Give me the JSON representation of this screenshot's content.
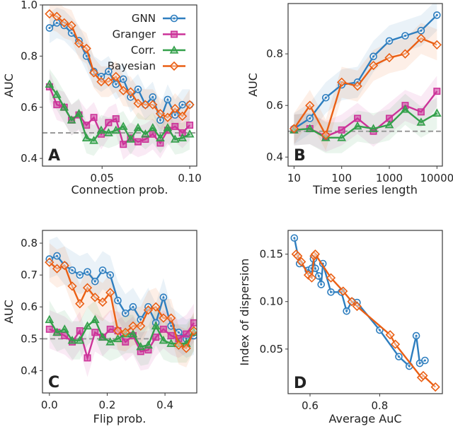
{
  "colors": {
    "GNN": "#2e7ebf",
    "Granger": "#cc3399",
    "Corr.": "#33a04a",
    "Bayesian": "#ea5f14",
    "baseline": "#999999"
  },
  "chart_data": [
    {
      "type": "line",
      "panel_label": "A",
      "xlabel": "Connection prob.",
      "ylabel": "AUC",
      "xlim": [
        0.016,
        0.104
      ],
      "ylim": [
        0.37,
        1.0
      ],
      "xticks": [
        0.05,
        0.1
      ],
      "xtick_labels": [
        "0.05",
        "0.10"
      ],
      "yticks": [
        0.4,
        0.6,
        0.8,
        1.0
      ],
      "ytick_labels": [
        "0.4",
        "0.6",
        "0.8",
        "1.0"
      ],
      "baseline": 0.5,
      "band_halfwidth": 0.06,
      "legend": "top-right",
      "x": [
        0.02,
        0.0242,
        0.0284,
        0.0326,
        0.0368,
        0.0411,
        0.0453,
        0.0495,
        0.0537,
        0.0579,
        0.0621,
        0.0663,
        0.0705,
        0.0747,
        0.0789,
        0.0832,
        0.0874,
        0.0916,
        0.0958,
        0.1
      ],
      "series": [
        {
          "name": "GNN",
          "marker": "circle",
          "values": [
            0.91,
            0.93,
            0.92,
            0.89,
            0.86,
            0.8,
            0.74,
            0.72,
            0.74,
            0.69,
            0.71,
            0.64,
            0.67,
            0.61,
            0.64,
            0.55,
            0.63,
            0.57,
            0.61,
            0.61
          ]
        },
        {
          "name": "Granger",
          "marker": "square",
          "values": [
            0.68,
            0.61,
            0.6,
            0.55,
            0.57,
            0.53,
            0.56,
            0.495,
            0.54,
            0.555,
            0.455,
            0.48,
            0.465,
            0.475,
            0.495,
            0.46,
            0.51,
            0.525,
            0.5,
            0.53
          ]
        },
        {
          "name": "Corr.",
          "marker": "triangle",
          "values": [
            0.69,
            0.65,
            0.6,
            0.55,
            0.575,
            0.48,
            0.47,
            0.51,
            0.5,
            0.51,
            0.525,
            0.475,
            0.52,
            0.495,
            0.52,
            0.48,
            0.52,
            0.475,
            0.48,
            0.495
          ]
        },
        {
          "name": "Bayesian",
          "marker": "diamond",
          "values": [
            0.965,
            0.955,
            0.93,
            0.92,
            0.85,
            0.83,
            0.735,
            0.7,
            0.7,
            0.72,
            0.665,
            0.66,
            0.615,
            0.61,
            0.61,
            0.575,
            0.56,
            0.595,
            0.565,
            0.61
          ]
        }
      ]
    },
    {
      "type": "line",
      "panel_label": "B",
      "xscale": "log",
      "xlabel": "Time series length",
      "ylabel": "AUC",
      "xlim": [
        7.5,
        13000
      ],
      "ylim": [
        0.365,
        0.995
      ],
      "xticks": [
        10,
        100,
        1000,
        10000
      ],
      "xtick_labels": [
        "10",
        "100",
        "1000",
        "10000"
      ],
      "yticks": [
        0.4,
        0.6,
        0.8
      ],
      "ytick_labels": [
        "0.4",
        "0.6",
        "0.8"
      ],
      "baseline": 0.5,
      "band_halfwidth": 0.06,
      "x": [
        10,
        21.5,
        46.4,
        100,
        215,
        464,
        1000,
        2154,
        4642,
        10000
      ],
      "series": [
        {
          "name": "GNN",
          "marker": "circle",
          "values": [
            0.51,
            0.55,
            0.63,
            0.68,
            0.69,
            0.79,
            0.85,
            0.87,
            0.89,
            0.95
          ]
        },
        {
          "name": "Granger",
          "marker": "square",
          "values": [
            0.505,
            0.51,
            0.48,
            0.505,
            0.55,
            0.5,
            0.55,
            0.6,
            0.575,
            0.655
          ]
        },
        {
          "name": "Corr.",
          "marker": "triangle",
          "values": [
            0.505,
            0.51,
            0.475,
            0.475,
            0.52,
            0.51,
            0.525,
            0.585,
            0.535,
            0.57
          ]
        },
        {
          "name": "Bayesian",
          "marker": "diamond",
          "values": [
            0.51,
            0.6,
            0.485,
            0.69,
            0.675,
            0.755,
            0.785,
            0.8,
            0.86,
            0.835
          ]
        }
      ]
    },
    {
      "type": "line",
      "panel_label": "C",
      "xlabel": "Flip prob.",
      "ylabel": "AUC",
      "xlim": [
        -0.024,
        0.51
      ],
      "ylim": [
        0.33,
        0.84
      ],
      "xticks": [
        0.0,
        0.2,
        0.4
      ],
      "xtick_labels": [
        "0.0",
        "0.2",
        "0.4"
      ],
      "yticks": [
        0.4,
        0.5,
        0.6,
        0.7,
        0.8
      ],
      "ytick_labels": [
        "0.4",
        "0.5",
        "0.6",
        "0.7",
        "0.8"
      ],
      "baseline": 0.5,
      "band_halfwidth": 0.06,
      "x": [
        0,
        0.0263,
        0.0526,
        0.0789,
        0.1053,
        0.1316,
        0.1579,
        0.1842,
        0.2105,
        0.2368,
        0.2632,
        0.2895,
        0.3158,
        0.3421,
        0.3684,
        0.3947,
        0.4211,
        0.4474,
        0.4737,
        0.5
      ],
      "series": [
        {
          "name": "GNN",
          "marker": "circle",
          "values": [
            0.75,
            0.76,
            0.73,
            0.715,
            0.7,
            0.71,
            0.68,
            0.715,
            0.7,
            0.62,
            0.58,
            0.6,
            0.56,
            0.6,
            0.55,
            0.63,
            0.54,
            0.52,
            0.5,
            0.51
          ]
        },
        {
          "name": "Granger",
          "marker": "square",
          "values": [
            0.53,
            0.52,
            0.51,
            0.49,
            0.525,
            0.44,
            0.52,
            0.505,
            0.53,
            0.525,
            0.49,
            0.51,
            0.46,
            0.465,
            0.505,
            0.53,
            0.51,
            0.5,
            0.515,
            0.55
          ]
        },
        {
          "name": "Corr.",
          "marker": "triangle",
          "values": [
            0.56,
            0.52,
            0.53,
            0.495,
            0.495,
            0.54,
            0.56,
            0.505,
            0.49,
            0.5,
            0.515,
            0.515,
            0.475,
            0.48,
            0.54,
            0.495,
            0.485,
            0.485,
            0.485,
            0.52
          ]
        },
        {
          "name": "Bayesian",
          "marker": "diamond",
          "values": [
            0.74,
            0.72,
            0.73,
            0.665,
            0.61,
            0.66,
            0.63,
            0.615,
            0.645,
            0.525,
            0.52,
            0.54,
            0.54,
            0.59,
            0.6,
            0.565,
            0.565,
            0.48,
            0.47,
            0.525
          ]
        }
      ]
    },
    {
      "type": "line",
      "panel_label": "D",
      "xlabel": "Average AuC",
      "ylabel": "Index of dispersion",
      "xlim": [
        0.537,
        0.98
      ],
      "ylim": [
        0.003,
        0.175
      ],
      "xticks": [
        0.6,
        0.8
      ],
      "xtick_labels": [
        "0.6",
        "0.8"
      ],
      "yticks": [
        0.05,
        0.1,
        0.15
      ],
      "ytick_labels": [
        "0.05",
        "0.10",
        "0.15"
      ],
      "series": [
        {
          "name": "GNN",
          "marker": "circle",
          "x": [
            0.555,
            0.57,
            0.595,
            0.605,
            0.61,
            0.615,
            0.625,
            0.632,
            0.637,
            0.66,
            0.69,
            0.705,
            0.72,
            0.735,
            0.8,
            0.855,
            0.885,
            0.905,
            0.915,
            0.93
          ],
          "values": [
            0.167,
            0.14,
            0.133,
            0.135,
            0.145,
            0.135,
            0.127,
            0.118,
            0.14,
            0.11,
            0.11,
            0.09,
            0.1,
            0.099,
            0.07,
            0.042,
            0.032,
            0.064,
            0.035,
            0.038
          ]
        },
        {
          "name": "Bayesian",
          "marker": "diamond",
          "x": [
            0.56,
            0.565,
            0.575,
            0.595,
            0.605,
            0.612,
            0.615,
            0.66,
            0.695,
            0.72,
            0.735,
            0.83,
            0.845,
            0.92,
            0.925,
            0.96
          ],
          "values": [
            0.15,
            0.148,
            0.142,
            0.128,
            0.125,
            0.148,
            0.15,
            0.125,
            0.111,
            0.1,
            0.095,
            0.065,
            0.055,
            0.02,
            0.022,
            0.01
          ]
        }
      ]
    }
  ]
}
